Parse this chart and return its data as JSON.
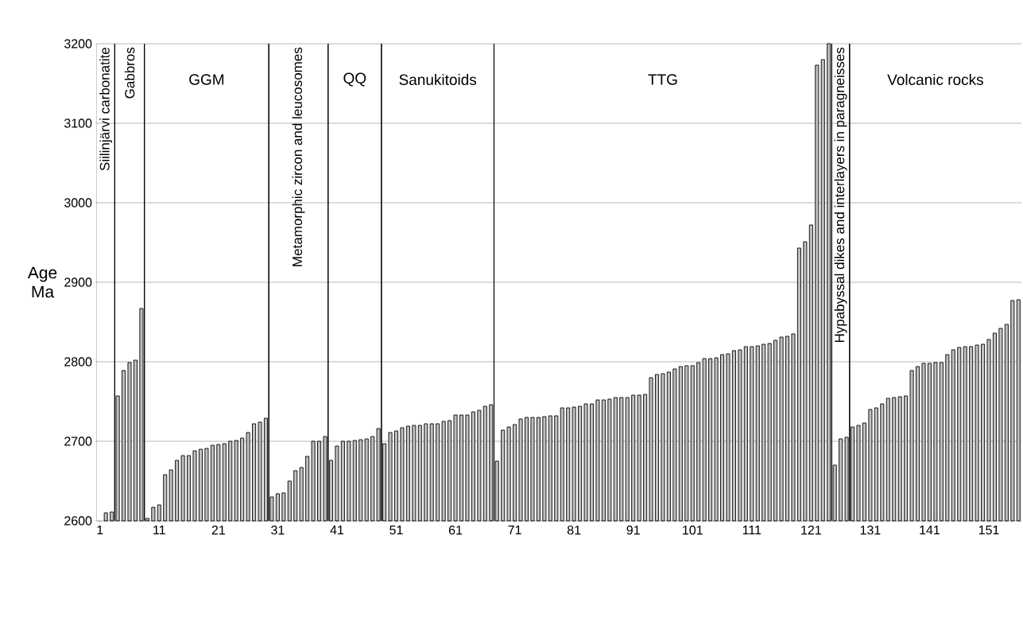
{
  "chart_data": {
    "type": "bar",
    "ylabel": "Age Ma",
    "x": [
      2,
      3,
      4,
      5,
      6,
      7,
      8,
      9,
      10,
      11,
      12,
      13,
      14,
      15,
      16,
      17,
      18,
      19,
      20,
      21,
      22,
      23,
      24,
      25,
      26,
      27,
      28,
      29,
      30,
      31,
      32,
      33,
      34,
      35,
      36,
      37,
      38,
      39,
      40,
      41,
      42,
      43,
      44,
      45,
      46,
      47,
      48,
      49,
      50,
      51,
      52,
      53,
      54,
      55,
      56,
      57,
      58,
      59,
      60,
      61,
      62,
      63,
      64,
      65,
      66,
      67,
      68,
      69,
      70,
      71,
      72,
      73,
      74,
      75,
      76,
      77,
      78,
      79,
      80,
      81,
      82,
      83,
      84,
      85,
      86,
      87,
      88,
      89,
      90,
      91,
      92,
      93,
      94,
      95,
      96,
      97,
      98,
      99,
      100,
      101,
      102,
      103,
      104,
      105,
      106,
      107,
      108,
      109,
      110,
      111,
      112,
      113,
      114,
      115,
      116,
      117,
      118,
      119,
      120,
      121,
      122,
      123,
      124,
      125,
      126,
      127,
      128,
      129,
      130,
      131,
      132,
      133,
      134,
      135,
      136,
      137,
      138,
      139,
      140,
      141,
      142,
      143,
      144,
      145,
      146,
      147,
      148,
      149,
      150,
      151,
      152,
      153,
      154,
      155,
      156
    ],
    "values": [
      2610,
      2611,
      2757,
      2789,
      2799,
      2802,
      2867,
      2603,
      2617,
      2620,
      2658,
      2664,
      2676,
      2682,
      2682,
      2688,
      2690,
      2691,
      2695,
      2696,
      2697,
      2700,
      2701,
      2704,
      2711,
      2722,
      2724,
      2729,
      2630,
      2634,
      2635,
      2650,
      2663,
      2667,
      2681,
      2700,
      2700,
      2706,
      2676,
      2694,
      2700,
      2700,
      2701,
      2702,
      2703,
      2706,
      2716,
      2697,
      2711,
      2713,
      2717,
      2719,
      2720,
      2720,
      2722,
      2722,
      2722,
      2725,
      2726,
      2733,
      2733,
      2733,
      2737,
      2739,
      2744,
      2746,
      2675,
      2714,
      2718,
      2721,
      2728,
      2730,
      2730,
      2730,
      2731,
      2732,
      2732,
      2742,
      2742,
      2743,
      2744,
      2747,
      2747,
      2752,
      2752,
      2753,
      2755,
      2755,
      2755,
      2758,
      2758,
      2759,
      2780,
      2784,
      2785,
      2787,
      2791,
      2794,
      2795,
      2795,
      2799,
      2804,
      2804,
      2805,
      2809,
      2810,
      2814,
      2815,
      2819,
      2819,
      2820,
      2822,
      2823,
      2827,
      2831,
      2832,
      2835,
      2943,
      2951,
      2972,
      3173,
      3180,
      3200,
      2670,
      2703,
      2705,
      2718,
      2720,
      2723,
      2740,
      2742,
      2747,
      2754,
      2755,
      2756,
      2757,
      2789,
      2794,
      2798,
      2798,
      2799,
      2799,
      2809,
      2815,
      2818,
      2819,
      2819,
      2821,
      2822,
      2828,
      2836,
      2842,
      2847,
      2877,
      2878
    ],
    "color": "#c0c0c0",
    "xlim": [
      0.5,
      156.5
    ],
    "xticks": [
      1,
      11,
      21,
      31,
      41,
      51,
      61,
      71,
      81,
      91,
      101,
      111,
      121,
      131,
      141,
      151
    ],
    "ylim": [
      2600,
      3200
    ],
    "yticks": [
      2600,
      2700,
      2800,
      2900,
      3000,
      3100,
      3200
    ],
    "grid": "y",
    "bands": [
      {
        "axis": "x",
        "from": 0.5,
        "to": 3.5,
        "label": "Siilinjärvi carbonatite",
        "color": "#ffffff"
      },
      {
        "axis": "x",
        "from": 3.5,
        "to": 8.5,
        "label": "Gabbros",
        "color": "#ffffff"
      },
      {
        "axis": "x",
        "from": 8.5,
        "to": 29.5,
        "label": "GGM",
        "color": "#ffffff"
      },
      {
        "axis": "x",
        "from": 29.5,
        "to": 39.5,
        "label": "Metamorphic zircon and leucosomes",
        "color": "#ffffff"
      },
      {
        "axis": "x",
        "from": 39.5,
        "to": 48.5,
        "label": "QQ",
        "color": "#ffffff"
      },
      {
        "axis": "x",
        "from": 48.5,
        "to": 67.5,
        "label": "Sanukitoids",
        "color": "#ffffff"
      },
      {
        "axis": "x",
        "from": 67.5,
        "to": 124.5,
        "label": "TTG",
        "color": "#ffffff"
      },
      {
        "axis": "x",
        "from": 124.5,
        "to": 127.5,
        "label": "Hypabyssal dikes and interlayers in paragneisses",
        "color": "#ffffff"
      },
      {
        "axis": "x",
        "from": 127.5,
        "to": 156.5,
        "label": "Volcanic rocks",
        "color": "#ffffff"
      }
    ]
  }
}
